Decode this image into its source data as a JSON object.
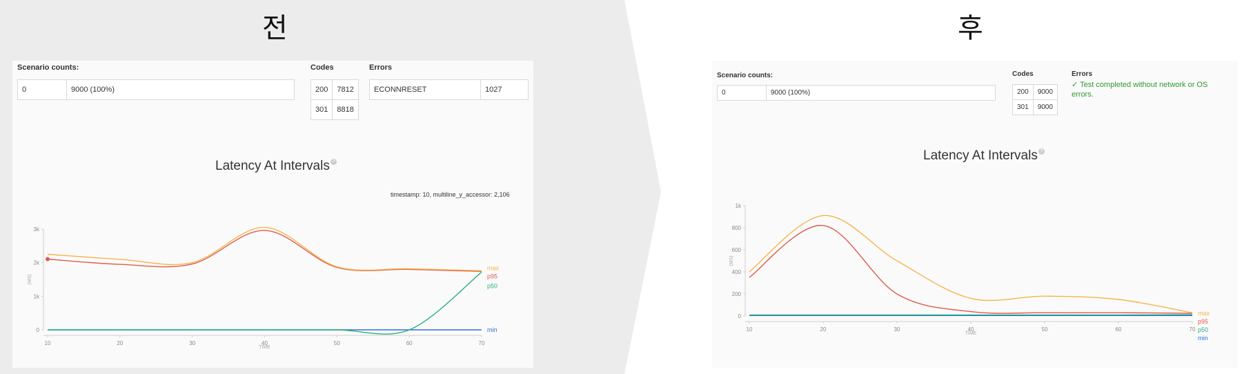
{
  "headings": {
    "before": "전",
    "after": "후"
  },
  "colors": {
    "max": "#f5b44a",
    "p95": "#e05a4a",
    "p50": "#27b07a",
    "min": "#2f6fe0",
    "code_link": "#3b7dc4",
    "success": "#2e9a2e"
  },
  "before": {
    "scenario_label": "Scenario counts:",
    "scenario_rows": [
      {
        "name": "0",
        "value": "9000 (100%)"
      }
    ],
    "codes_label": "Codes",
    "codes": [
      {
        "code": "200",
        "count": "7812"
      },
      {
        "code": "301",
        "count": "8818"
      }
    ],
    "errors_label": "Errors",
    "errors": [
      {
        "name": "ECONNRESET",
        "count": "1027"
      }
    ],
    "chart_title": "Latency At Intervals",
    "help_icon": "?",
    "tooltip": "timestamp: 10, multiline_y_accessor: 2,106"
  },
  "after": {
    "scenario_label": "Scenario counts:",
    "scenario_rows": [
      {
        "name": "0",
        "value": "9000 (100%)"
      }
    ],
    "codes_label": "Codes",
    "codes": [
      {
        "code": "200",
        "count": "9000"
      },
      {
        "code": "301",
        "count": "9000"
      }
    ],
    "errors_label": "Errors",
    "errors_message": "✓ Test completed without network or OS errors.",
    "chart_title": "Latency At Intervals",
    "help_icon": "?"
  },
  "chart_data": [
    {
      "type": "line",
      "title": "Latency At Intervals",
      "xlabel": "TIME",
      "ylabel": "(MS)",
      "x": [
        10,
        20,
        30,
        40,
        50,
        60,
        70
      ],
      "ylim": [
        0,
        3000
      ],
      "xticks": [
        "10",
        "20",
        "30",
        "40",
        "50",
        "60",
        "70"
      ],
      "yticks": [
        "0",
        "1k",
        "2k",
        "3k"
      ],
      "highlight": {
        "series": "p95",
        "x": 10,
        "y": 2106
      },
      "series": [
        {
          "name": "max",
          "values": [
            2250,
            2100,
            2000,
            3050,
            1880,
            1820,
            1760
          ]
        },
        {
          "name": "p95",
          "values": [
            2106,
            1950,
            1960,
            2960,
            1860,
            1800,
            1740
          ]
        },
        {
          "name": "p50",
          "values": [
            0,
            0,
            0,
            0,
            0,
            0,
            1720
          ]
        },
        {
          "name": "min",
          "values": [
            0,
            0,
            0,
            0,
            0,
            0,
            0
          ]
        }
      ]
    },
    {
      "type": "line",
      "title": "Latency At Intervals",
      "xlabel": "TIME",
      "ylabel": "(MS)",
      "x": [
        10,
        20,
        30,
        40,
        50,
        60,
        70
      ],
      "ylim": [
        0,
        1000
      ],
      "xticks": [
        "10",
        "20",
        "30",
        "40",
        "50",
        "60",
        "70"
      ],
      "yticks": [
        "0",
        "200",
        "400",
        "600",
        "800",
        "1k"
      ],
      "series": [
        {
          "name": "max",
          "values": [
            400,
            910,
            500,
            160,
            180,
            150,
            30
          ]
        },
        {
          "name": "p95",
          "values": [
            350,
            820,
            200,
            40,
            30,
            30,
            25
          ]
        },
        {
          "name": "p50",
          "values": [
            10,
            10,
            10,
            10,
            10,
            10,
            12
          ]
        },
        {
          "name": "min",
          "values": [
            5,
            5,
            5,
            5,
            5,
            5,
            5
          ]
        }
      ]
    }
  ]
}
